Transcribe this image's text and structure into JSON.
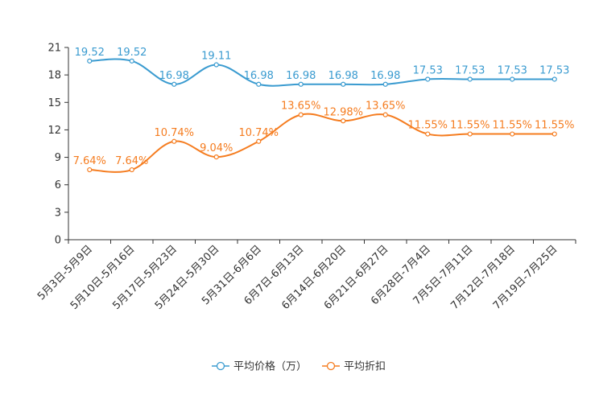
{
  "chart_data": {
    "type": "line",
    "categories": [
      "5月3日-5月9日",
      "5月10日-5月16日",
      "5月17日-5月23日",
      "5月24日-5月30日",
      "5月31日-6月6日",
      "6月7日-6月13日",
      "6月14日-6月20日",
      "6月21日-6月27日",
      "6月28日-7月4日",
      "7月5日-7月11日",
      "7月12日-7月18日",
      "7月19日-7月25日"
    ],
    "ylim": [
      0,
      21
    ],
    "yticks": [
      0,
      3,
      6,
      9,
      12,
      15,
      18,
      21
    ],
    "legend_position": "bottom",
    "series": [
      {
        "name": "平均价格（万）",
        "color": "#3a9bd0",
        "values": [
          19.52,
          19.52,
          16.98,
          19.11,
          16.98,
          16.98,
          16.98,
          16.98,
          17.53,
          17.53,
          17.53,
          17.53
        ],
        "labels": [
          "19.52",
          "19.52",
          "16.98",
          "19.11",
          "16.98",
          "16.98",
          "16.98",
          "16.98",
          "17.53",
          "17.53",
          "17.53",
          "17.53"
        ]
      },
      {
        "name": "平均折扣",
        "color": "#f57c1f",
        "values": [
          7.64,
          7.64,
          10.74,
          9.04,
          10.74,
          13.65,
          12.98,
          13.65,
          11.55,
          11.55,
          11.55,
          11.55
        ],
        "labels": [
          "7.64%",
          "7.64%",
          "10.74%",
          "9.04%",
          "10.74%",
          "13.65%",
          "12.98%",
          "13.65%",
          "11.55%",
          "11.55%",
          "11.55%",
          "11.55%"
        ]
      }
    ]
  }
}
